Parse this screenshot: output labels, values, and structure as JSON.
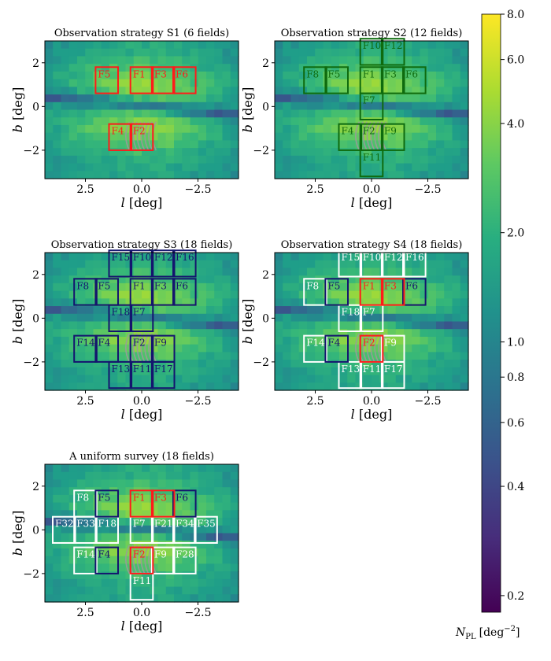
{
  "figure": {
    "colorbar": {
      "label_main": "N",
      "label_sub": "PL",
      "label_unit": "[deg",
      "label_exp": "−2",
      "label_close": "]",
      "scale": "log",
      "range": [
        0.18,
        8.0
      ],
      "tick_values": [
        8.0,
        6.0,
        4.0,
        2.0,
        1.0,
        0.8,
        0.6,
        0.4,
        0.2
      ],
      "tick_labels": [
        "8.0",
        "6.0",
        "4.0",
        "2.0",
        "1.0",
        "0.8",
        "0.6",
        "0.4",
        "0.2"
      ],
      "colormap": "viridis"
    },
    "colors": {
      "red": "#ff1a1a",
      "green": "#0e6b0e",
      "navy": "#14146e",
      "white": "#ffffff",
      "microlens_arc": "#9a9a9a"
    }
  },
  "chart_data": [
    {
      "type": "heatmap",
      "title": "Observation strategy S1 (6 fields)",
      "xlabel": "l [deg]",
      "ylabel": "b [deg]",
      "xlim": [
        4.3,
        -4.3
      ],
      "ylim": [
        -3.3,
        3.0
      ],
      "xticks": [
        2.5,
        0.0,
        -2.5
      ],
      "xtick_labels": [
        "2.5",
        "0.0",
        "−2.5"
      ],
      "yticks": [
        2,
        0,
        -2
      ],
      "ytick_labels": [
        "2",
        "0",
        "−2"
      ],
      "fields": [
        {
          "name": "F5",
          "l": 1.55,
          "b": 1.2,
          "color": "red"
        },
        {
          "name": "F1",
          "l": 0.0,
          "b": 1.2,
          "color": "red"
        },
        {
          "name": "F3",
          "l": -0.95,
          "b": 1.2,
          "color": "red"
        },
        {
          "name": "F6",
          "l": -1.9,
          "b": 1.2,
          "color": "red"
        },
        {
          "name": "F4",
          "l": 0.95,
          "b": -1.4,
          "color": "red"
        },
        {
          "name": "F2",
          "l": 0.0,
          "b": -1.4,
          "color": "red"
        }
      ]
    },
    {
      "type": "heatmap",
      "title": "Observation strategy S2 (12 fields)",
      "xlabel": "l [deg]",
      "ylabel": "b [deg]",
      "xlim": [
        4.3,
        -4.3
      ],
      "ylim": [
        -3.3,
        3.0
      ],
      "xticks": [
        2.5,
        0.0,
        -2.5
      ],
      "xtick_labels": [
        "2.5",
        "0.0",
        "−2.5"
      ],
      "yticks": [
        2,
        0,
        -2
      ],
      "ytick_labels": [
        "2",
        "0",
        "−2"
      ],
      "fields": [
        {
          "name": "F10",
          "l": 0.0,
          "b": 2.5,
          "color": "green"
        },
        {
          "name": "F12",
          "l": -0.95,
          "b": 2.5,
          "color": "green"
        },
        {
          "name": "F8",
          "l": 2.5,
          "b": 1.2,
          "color": "green"
        },
        {
          "name": "F5",
          "l": 1.55,
          "b": 1.2,
          "color": "green"
        },
        {
          "name": "F1",
          "l": 0.0,
          "b": 1.2,
          "color": "green"
        },
        {
          "name": "F3",
          "l": -0.95,
          "b": 1.2,
          "color": "green"
        },
        {
          "name": "F6",
          "l": -1.9,
          "b": 1.2,
          "color": "green"
        },
        {
          "name": "F7",
          "l": 0.0,
          "b": 0.0,
          "color": "green"
        },
        {
          "name": "F4",
          "l": 0.95,
          "b": -1.4,
          "color": "green"
        },
        {
          "name": "F2",
          "l": 0.0,
          "b": -1.4,
          "color": "green"
        },
        {
          "name": "F9",
          "l": -0.95,
          "b": -1.4,
          "color": "green"
        },
        {
          "name": "F11",
          "l": 0.0,
          "b": -2.6,
          "color": "green"
        }
      ]
    },
    {
      "type": "heatmap",
      "title": "Observation strategy S3 (18 fields)",
      "xlabel": "l [deg]",
      "ylabel": "b [deg]",
      "xlim": [
        4.3,
        -4.3
      ],
      "ylim": [
        -3.3,
        3.0
      ],
      "xticks": [
        2.5,
        0.0,
        -2.5
      ],
      "xtick_labels": [
        "2.5",
        "0.0",
        "−2.5"
      ],
      "yticks": [
        2,
        0,
        -2
      ],
      "ytick_labels": [
        "2",
        "0",
        "−2"
      ],
      "fields": [
        {
          "name": "F15",
          "l": 0.95,
          "b": 2.5,
          "color": "navy"
        },
        {
          "name": "F10",
          "l": 0.0,
          "b": 2.5,
          "color": "navy"
        },
        {
          "name": "F12",
          "l": -0.95,
          "b": 2.5,
          "color": "navy"
        },
        {
          "name": "F16",
          "l": -1.9,
          "b": 2.5,
          "color": "navy"
        },
        {
          "name": "F8",
          "l": 2.5,
          "b": 1.2,
          "color": "navy"
        },
        {
          "name": "F5",
          "l": 1.55,
          "b": 1.2,
          "color": "navy"
        },
        {
          "name": "F1",
          "l": 0.0,
          "b": 1.2,
          "color": "navy"
        },
        {
          "name": "F3",
          "l": -0.95,
          "b": 1.2,
          "color": "navy"
        },
        {
          "name": "F6",
          "l": -1.9,
          "b": 1.2,
          "color": "navy"
        },
        {
          "name": "F18",
          "l": 0.95,
          "b": 0.0,
          "color": "navy"
        },
        {
          "name": "F7",
          "l": 0.0,
          "b": 0.0,
          "color": "navy"
        },
        {
          "name": "F14",
          "l": 2.5,
          "b": -1.4,
          "color": "navy"
        },
        {
          "name": "F4",
          "l": 1.55,
          "b": -1.4,
          "color": "navy"
        },
        {
          "name": "F2",
          "l": 0.0,
          "b": -1.4,
          "color": "navy"
        },
        {
          "name": "F9",
          "l": -0.95,
          "b": -1.4,
          "color": "navy"
        },
        {
          "name": "F13",
          "l": 0.95,
          "b": -2.6,
          "color": "navy"
        },
        {
          "name": "F11",
          "l": 0.0,
          "b": -2.6,
          "color": "navy"
        },
        {
          "name": "F17",
          "l": -0.95,
          "b": -2.6,
          "color": "navy"
        }
      ]
    },
    {
      "type": "heatmap",
      "title": "Observation strategy S4 (18 fields)",
      "xlabel": "l [deg]",
      "ylabel": "b [deg]",
      "xlim": [
        4.3,
        -4.3
      ],
      "ylim": [
        -3.3,
        3.0
      ],
      "xticks": [
        2.5,
        0.0,
        -2.5
      ],
      "xtick_labels": [
        "2.5",
        "0.0",
        "−2.5"
      ],
      "yticks": [
        2,
        0,
        -2
      ],
      "ytick_labels": [
        "2",
        "0",
        "−2"
      ],
      "fields": [
        {
          "name": "F15",
          "l": 0.95,
          "b": 2.5,
          "color": "white"
        },
        {
          "name": "F10",
          "l": 0.0,
          "b": 2.5,
          "color": "white"
        },
        {
          "name": "F12",
          "l": -0.95,
          "b": 2.5,
          "color": "white"
        },
        {
          "name": "F16",
          "l": -1.9,
          "b": 2.5,
          "color": "white"
        },
        {
          "name": "F8",
          "l": 2.5,
          "b": 1.2,
          "color": "white"
        },
        {
          "name": "F5",
          "l": 1.55,
          "b": 1.2,
          "color": "navy"
        },
        {
          "name": "F1",
          "l": 0.0,
          "b": 1.2,
          "color": "red"
        },
        {
          "name": "F3",
          "l": -0.95,
          "b": 1.2,
          "color": "red"
        },
        {
          "name": "F6",
          "l": -1.9,
          "b": 1.2,
          "color": "navy"
        },
        {
          "name": "F18",
          "l": 0.95,
          "b": 0.0,
          "color": "white"
        },
        {
          "name": "F7",
          "l": 0.0,
          "b": 0.0,
          "color": "white"
        },
        {
          "name": "F14",
          "l": 2.5,
          "b": -1.4,
          "color": "white"
        },
        {
          "name": "F4",
          "l": 1.55,
          "b": -1.4,
          "color": "navy"
        },
        {
          "name": "F2",
          "l": 0.0,
          "b": -1.4,
          "color": "red"
        },
        {
          "name": "F9",
          "l": -0.95,
          "b": -1.4,
          "color": "white"
        },
        {
          "name": "F13",
          "l": 0.95,
          "b": -2.6,
          "color": "white"
        },
        {
          "name": "F11",
          "l": 0.0,
          "b": -2.6,
          "color": "white"
        },
        {
          "name": "F17",
          "l": -0.95,
          "b": -2.6,
          "color": "white"
        }
      ]
    },
    {
      "type": "heatmap",
      "title": "A uniform survey (18 fields)",
      "xlabel": "l [deg]",
      "ylabel": "b [deg]",
      "xlim": [
        4.3,
        -4.3
      ],
      "ylim": [
        -3.3,
        3.0
      ],
      "xticks": [
        2.5,
        0.0,
        -2.5
      ],
      "xtick_labels": [
        "2.5",
        "0.0",
        "−2.5"
      ],
      "yticks": [
        2,
        0,
        -2
      ],
      "ytick_labels": [
        "2",
        "0",
        "−2"
      ],
      "fields": [
        {
          "name": "F8",
          "l": 2.5,
          "b": 1.2,
          "color": "white"
        },
        {
          "name": "F5",
          "l": 1.55,
          "b": 1.2,
          "color": "navy"
        },
        {
          "name": "F1",
          "l": 0.0,
          "b": 1.2,
          "color": "red"
        },
        {
          "name": "F3",
          "l": -0.95,
          "b": 1.2,
          "color": "red"
        },
        {
          "name": "F6",
          "l": -1.9,
          "b": 1.2,
          "color": "navy"
        },
        {
          "name": "F32",
          "l": 3.45,
          "b": 0.0,
          "color": "white"
        },
        {
          "name": "F33",
          "l": 2.5,
          "b": 0.0,
          "color": "white"
        },
        {
          "name": "F18",
          "l": 1.55,
          "b": 0.0,
          "color": "white"
        },
        {
          "name": "F7",
          "l": 0.0,
          "b": 0.0,
          "color": "white"
        },
        {
          "name": "F21",
          "l": -0.95,
          "b": 0.0,
          "color": "white"
        },
        {
          "name": "F34",
          "l": -1.9,
          "b": 0.0,
          "color": "white"
        },
        {
          "name": "F35",
          "l": -2.85,
          "b": 0.0,
          "color": "white"
        },
        {
          "name": "F14",
          "l": 2.5,
          "b": -1.4,
          "color": "white"
        },
        {
          "name": "F4",
          "l": 1.55,
          "b": -1.4,
          "color": "navy"
        },
        {
          "name": "F2",
          "l": 0.0,
          "b": -1.4,
          "color": "red"
        },
        {
          "name": "F9",
          "l": -0.95,
          "b": -1.4,
          "color": "white"
        },
        {
          "name": "F28",
          "l": -1.9,
          "b": -1.4,
          "color": "white"
        },
        {
          "name": "F11",
          "l": 0.0,
          "b": -2.6,
          "color": "white"
        }
      ]
    }
  ]
}
